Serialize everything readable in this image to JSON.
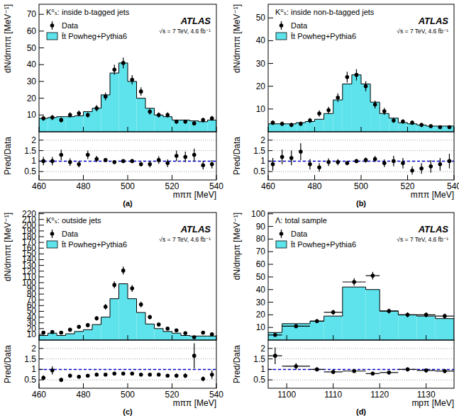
{
  "chart_data": [
    {
      "type": "histogram",
      "title": "K⁰ₛ: inside b-tagged jets",
      "annotations": [
        "ATLAS",
        "√s = 7 TeV, 4.6 fb⁻¹"
      ],
      "y_label": "dN/dmππ [MeV⁻¹]",
      "legend": "upper left",
      "tick_labels": "y",
      "bins": [
        460,
        464,
        468,
        472,
        476,
        480,
        484,
        488,
        492,
        496,
        500,
        504,
        508,
        512,
        516,
        520,
        524,
        528,
        532,
        536,
        540
      ],
      "xlim": [
        460,
        540
      ],
      "xticks": [
        460,
        480,
        500,
        520,
        540
      ],
      "ylim": [
        0,
        76
      ],
      "yticks": [
        10,
        20,
        30,
        40,
        50,
        60,
        70
      ],
      "series": [
        {
          "name": "Data",
          "type": "scatter",
          "marker": "circle",
          "color": "#000000",
          "x": [
            462,
            466,
            470,
            474,
            478,
            482,
            486,
            490,
            494,
            498,
            502,
            506,
            510,
            514,
            518,
            522,
            526,
            530,
            534,
            538
          ],
          "values": [
            8,
            8.5,
            7,
            10,
            11,
            10,
            14,
            21,
            37,
            41,
            31,
            24,
            12,
            10,
            10,
            6,
            6,
            5,
            7,
            8
          ],
          "errors": [
            1.5,
            1.5,
            1.5,
            1.6,
            1.7,
            1.6,
            1.9,
            2.3,
            3,
            3.2,
            2.8,
            2.5,
            1.8,
            1.6,
            1.6,
            1.3,
            1.3,
            1.2,
            1.4,
            1.5
          ]
        },
        {
          "name": "t̄t Powheg+Pythia6",
          "type": "histogram",
          "color": "#5ee3ec",
          "values": [
            8,
            8.5,
            9,
            9,
            9.5,
            12,
            14,
            22,
            35,
            41,
            30,
            20,
            14,
            10,
            9,
            7,
            7,
            6.5,
            6,
            7
          ]
        }
      ]
    },
    {
      "type": "scatter",
      "y_label": "Pred/Data",
      "x_label": "mππ [MeV]",
      "panel_label": "(a)",
      "grid": true,
      "reference_line": 1,
      "marker": "circle",
      "color": "#000000",
      "xlim": [
        460,
        540
      ],
      "xticks": [
        460,
        480,
        500,
        520,
        540
      ],
      "ylim": [
        0.1,
        2.4
      ],
      "yticks": [
        0.5,
        1,
        1.5,
        2
      ],
      "x": [
        462,
        466,
        470,
        474,
        478,
        482,
        486,
        490,
        494,
        498,
        502,
        506,
        510,
        514,
        518,
        522,
        526,
        530,
        534,
        538
      ],
      "values": [
        1.0,
        1.0,
        1.3,
        0.95,
        0.85,
        1.3,
        1.1,
        1.05,
        0.95,
        1.0,
        1.0,
        0.85,
        0.85,
        1.05,
        0.9,
        1.25,
        1.2,
        1.3,
        0.8,
        0.85
      ],
      "errors": [
        0.2,
        0.2,
        0.25,
        0.18,
        0.15,
        0.2,
        0.15,
        0.1,
        0.08,
        0.08,
        0.1,
        0.1,
        0.15,
        0.18,
        0.18,
        0.25,
        0.25,
        0.3,
        0.2,
        0.2
      ]
    },
    {
      "type": "histogram",
      "title": "K⁰ₛ: inside non-b-tagged jets",
      "annotations": [
        "ATLAS",
        "√s = 7 TeV, 4.6 fb⁻¹"
      ],
      "y_label": "dN/dmππ [MeV⁻¹]",
      "legend": "upper left",
      "tick_labels": "y",
      "bins": [
        460,
        464,
        468,
        472,
        476,
        480,
        484,
        488,
        492,
        496,
        500,
        504,
        508,
        512,
        516,
        520,
        524,
        528,
        532,
        536,
        540
      ],
      "xlim": [
        460,
        540
      ],
      "xticks": [
        460,
        480,
        500,
        520,
        540
      ],
      "ylim": [
        0,
        56
      ],
      "yticks": [
        10,
        20,
        30,
        40,
        50
      ],
      "series": [
        {
          "name": "Data",
          "type": "scatter",
          "marker": "circle",
          "color": "#000000",
          "x": [
            462,
            466,
            470,
            474,
            478,
            482,
            486,
            490,
            494,
            498,
            502,
            506,
            510,
            514,
            518,
            522,
            526,
            530,
            534,
            538
          ],
          "values": [
            4,
            3.5,
            3,
            3.5,
            5,
            8,
            9.5,
            15,
            24,
            25,
            20,
            12,
            9,
            5,
            4.5,
            4,
            3,
            2.5,
            2,
            2
          ],
          "errors": [
            1,
            1,
            0.9,
            1,
            1.1,
            1.4,
            1.5,
            1.9,
            2.4,
            2.5,
            2.2,
            1.7,
            1.5,
            1.1,
            1,
            1,
            0.9,
            0.8,
            0.7,
            0.7
          ]
        },
        {
          "name": "t̄t Powheg+Pythia6",
          "type": "histogram",
          "color": "#5ee3ec",
          "values": [
            3.5,
            3.5,
            3.5,
            4,
            4.5,
            5.5,
            8,
            14,
            21,
            25,
            21,
            13,
            8,
            6,
            4,
            3.5,
            3,
            2.5,
            2.5,
            2.5
          ]
        }
      ]
    },
    {
      "type": "scatter",
      "y_label": "Pred/Data",
      "x_label": "mππ [MeV]",
      "panel_label": "(b)",
      "grid": true,
      "reference_line": 1,
      "marker": "circle",
      "color": "#000000",
      "xlim": [
        460,
        540
      ],
      "xticks": [
        460,
        480,
        500,
        520,
        540
      ],
      "ylim": [
        0.1,
        2.4
      ],
      "yticks": [
        0.5,
        1,
        1.5,
        2
      ],
      "x": [
        462,
        466,
        470,
        474,
        478,
        482,
        486,
        490,
        494,
        498,
        502,
        506,
        510,
        514,
        518,
        522,
        526,
        530,
        534,
        538
      ],
      "values": [
        0.85,
        1.2,
        1.15,
        1.45,
        0.85,
        0.7,
        0.95,
        0.95,
        0.9,
        1.0,
        1.05,
        1.1,
        0.9,
        1.0,
        0.9,
        0.55,
        0.65,
        0.75,
        0.85,
        1.0
      ],
      "errors": [
        0.3,
        0.35,
        0.35,
        0.4,
        0.25,
        0.2,
        0.18,
        0.15,
        0.1,
        0.1,
        0.12,
        0.15,
        0.18,
        0.25,
        0.25,
        0.2,
        0.25,
        0.3,
        0.3,
        0.35
      ]
    },
    {
      "type": "histogram",
      "title": "K⁰ₛ: outside jets",
      "annotations": [
        "ATLAS",
        "√s = 7 TeV, 4.6 fb⁻¹"
      ],
      "y_label": "dN/dmππ [MeV⁻¹]",
      "legend": "upper left",
      "tick_labels": "y",
      "bins": [
        460,
        464,
        468,
        472,
        476,
        480,
        484,
        488,
        492,
        496,
        500,
        504,
        508,
        512,
        516,
        520,
        524,
        528,
        532,
        536,
        540
      ],
      "xlim": [
        460,
        540
      ],
      "xticks": [
        460,
        480,
        500,
        520,
        540
      ],
      "ylim": [
        0,
        222
      ],
      "yticks": [
        10,
        20,
        30,
        40,
        50,
        60,
        70,
        80,
        90,
        100,
        110,
        120,
        130,
        140,
        150,
        160,
        170,
        180,
        190,
        200,
        210,
        220
      ],
      "series": [
        {
          "name": "Data",
          "type": "scatter",
          "marker": "circle",
          "color": "#000000",
          "x": [
            462,
            466,
            470,
            474,
            478,
            482,
            486,
            490,
            494,
            498,
            502,
            506,
            510,
            514,
            518,
            522,
            526,
            530,
            534,
            538
          ],
          "values": [
            13,
            14,
            13,
            18,
            23,
            26,
            38,
            58,
            96,
            121,
            90,
            62,
            40,
            27,
            20,
            17,
            12,
            5,
            13,
            10
          ],
          "errors": [
            2.5,
            2.6,
            2.5,
            3,
            3.3,
            3.5,
            4,
            5,
            6,
            7,
            6,
            5,
            4,
            3.3,
            3,
            2.7,
            2.3,
            1.5,
            2.5,
            2.2
          ]
        },
        {
          "name": "t̄t Powheg+Pythia6",
          "type": "histogram",
          "color": "#5ee3ec",
          "values": [
            8,
            12,
            8,
            11,
            15,
            18,
            27,
            40,
            72,
            98,
            72,
            48,
            28,
            20,
            15,
            12,
            8,
            7,
            7,
            7
          ]
        }
      ]
    },
    {
      "type": "scatter",
      "y_label": "Pred/Data",
      "x_label": "mππ [MeV]",
      "panel_label": "(c)",
      "grid": true,
      "reference_line": 1,
      "marker": "circle",
      "color": "#000000",
      "xlim": [
        460,
        540
      ],
      "xticks": [
        460,
        480,
        500,
        520,
        540
      ],
      "ylim": [
        0.1,
        2.4
      ],
      "yticks": [
        0.5,
        1,
        1.5,
        2
      ],
      "x": [
        462,
        466,
        470,
        474,
        478,
        482,
        486,
        490,
        494,
        498,
        502,
        506,
        510,
        514,
        518,
        522,
        526,
        530,
        534,
        538
      ],
      "values": [
        0.6,
        0.95,
        0.5,
        0.7,
        0.65,
        0.7,
        0.75,
        0.75,
        0.8,
        0.8,
        0.8,
        0.75,
        0.75,
        0.75,
        0.7,
        0.7,
        0.7,
        1.65,
        0.55,
        0.75
      ],
      "errors": [
        0.12,
        0.2,
        0.1,
        0.1,
        0.08,
        0.08,
        0.07,
        0.05,
        0.05,
        0.04,
        0.05,
        0.05,
        0.06,
        0.07,
        0.08,
        0.1,
        0.12,
        0.6,
        0.12,
        0.2
      ]
    },
    {
      "type": "histogram",
      "title": "Λ: total sample",
      "annotations": [
        "ATLAS",
        "√s = 7 TeV, 4.6 fb⁻¹"
      ],
      "y_label": "dN/dmpπ [MeV⁻¹]",
      "legend": "upper left",
      "tick_labels": "y",
      "bins": [
        1096,
        1099,
        1105,
        1108,
        1112,
        1117,
        1120,
        1124,
        1128,
        1132,
        1136
      ],
      "xlim": [
        1096,
        1136
      ],
      "xticks": [
        1100,
        1110,
        1120,
        1130
      ],
      "ylim": [
        0,
        101
      ],
      "yticks": [
        10,
        20,
        30,
        40,
        50,
        60,
        70,
        80,
        90,
        100
      ],
      "series": [
        {
          "name": "Data",
          "type": "scatter",
          "marker": "circle",
          "color": "#000000",
          "x": [
            1097.5,
            1102,
            1106.5,
            1110,
            1114.5,
            1118.5,
            1122,
            1126,
            1130,
            1134
          ],
          "x_errors": [
            1.5,
            3,
            1.5,
            2,
            2.5,
            1.5,
            2,
            2,
            2,
            2
          ],
          "values": [
            4,
            11,
            15,
            22,
            46,
            51,
            23,
            20,
            20,
            19
          ],
          "errors": [
            1,
            1.5,
            1.5,
            2,
            3,
            3,
            2,
            2,
            2,
            2
          ]
        },
        {
          "name": "t̄t Powheg+Pythia6",
          "type": "histogram",
          "color": "#5ee3ec",
          "values": [
            6,
            13,
            15,
            19,
            42,
            40,
            23,
            20,
            19,
            17
          ]
        }
      ]
    },
    {
      "type": "scatter",
      "y_label": "Pred/Data",
      "x_label": "mpπ [MeV]",
      "panel_label": "(d)",
      "grid": true,
      "reference_line": 1,
      "marker": "circle",
      "color": "#000000",
      "xlim": [
        1096,
        1136
      ],
      "xticks": [
        1100,
        1110,
        1120,
        1130
      ],
      "ylim": [
        0.1,
        2.4
      ],
      "yticks": [
        0.5,
        1,
        1.5,
        2
      ],
      "x": [
        1097.5,
        1102,
        1106.5,
        1110,
        1114.5,
        1118.5,
        1122,
        1126,
        1130,
        1134
      ],
      "x_errors": [
        1.5,
        3,
        1.5,
        2,
        2.5,
        1.5,
        2,
        2,
        2,
        2
      ],
      "values": [
        1.65,
        1.15,
        1.0,
        0.88,
        0.92,
        0.8,
        0.85,
        1.0,
        0.95,
        0.92
      ],
      "errors": [
        0.4,
        0.15,
        0.1,
        0.1,
        0.06,
        0.06,
        0.08,
        0.1,
        0.1,
        0.1
      ]
    }
  ]
}
